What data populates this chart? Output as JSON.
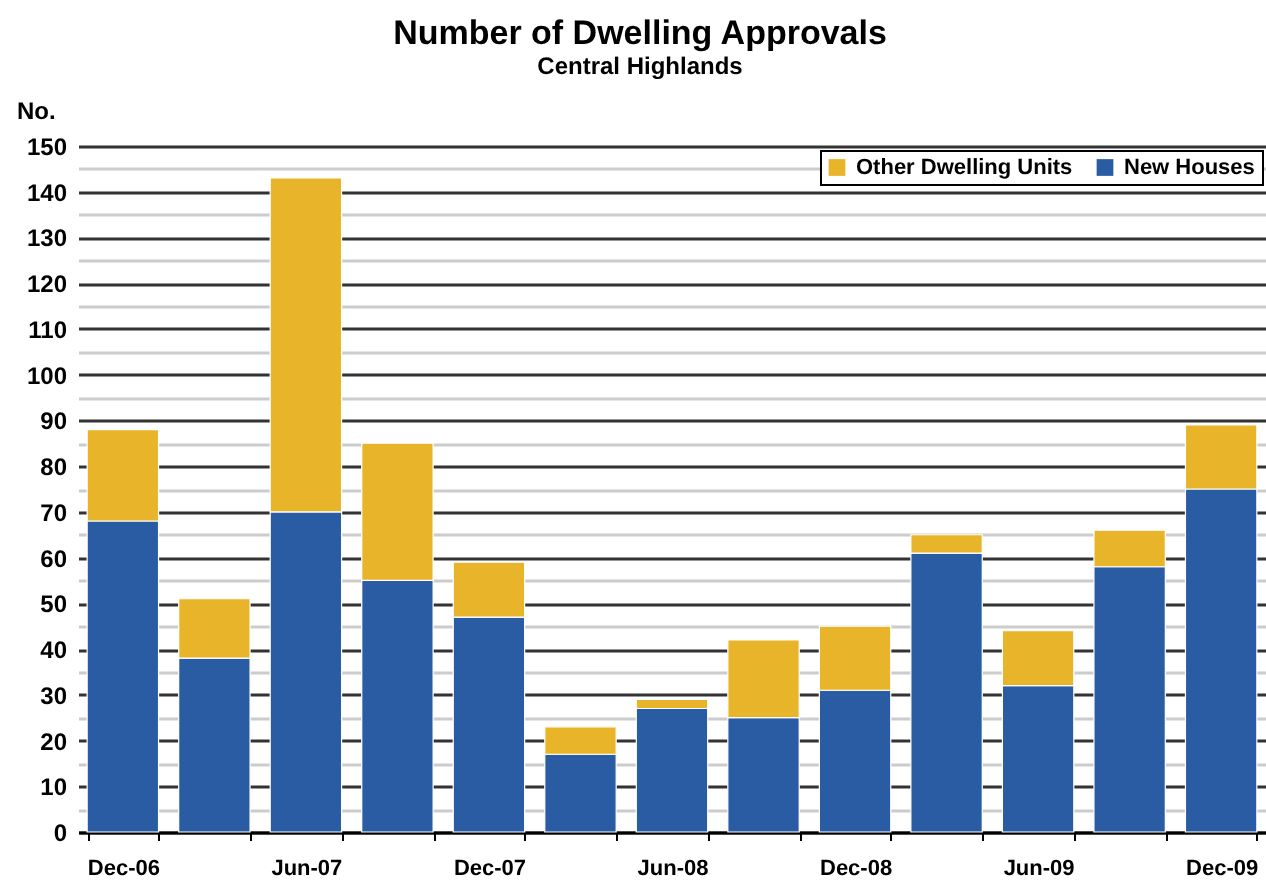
{
  "chart_data": {
    "type": "bar",
    "title": "Number of Dwelling Approvals",
    "subtitle": "Central Highlands",
    "ylabel": "No.",
    "categories": [
      "Dec-06",
      null,
      "Jun-07",
      null,
      "Dec-07",
      null,
      "Jun-08",
      null,
      "Dec-08",
      null,
      "Jun-09",
      null,
      "Dec-09"
    ],
    "series": [
      {
        "name": "New Houses",
        "color": "#2a5ca3",
        "values": [
          68,
          38,
          70,
          55,
          47,
          17,
          27,
          25,
          31,
          61,
          32,
          58,
          75
        ]
      },
      {
        "name": "Other Dwelling Units",
        "color": "#e8b52a",
        "values": [
          20,
          13,
          73,
          30,
          12,
          6,
          2,
          17,
          14,
          4,
          12,
          8,
          14
        ]
      }
    ],
    "stacked": true,
    "ylim": [
      0,
      150
    ],
    "yticks": [
      0,
      {
        "value": 5,
        "label": null
      },
      10,
      {
        "value": 15,
        "label": null
      },
      20,
      {
        "value": 25,
        "label": null
      },
      30,
      {
        "value": 35,
        "label": null
      },
      40,
      {
        "value": 45,
        "label": null
      },
      50,
      {
        "value": 55,
        "label": null
      },
      60,
      {
        "value": 65,
        "label": null
      },
      70,
      {
        "value": 75,
        "label": null
      },
      80,
      {
        "value": 85,
        "label": null
      },
      90,
      {
        "value": 95,
        "label": null
      },
      100,
      {
        "value": 105,
        "label": null
      },
      110,
      {
        "value": 115,
        "label": null
      },
      120,
      {
        "value": 125,
        "label": null
      },
      130,
      {
        "value": 135,
        "label": null
      },
      140,
      {
        "value": 145,
        "label": null
      },
      150
    ],
    "grid": "y",
    "legend": "top right"
  }
}
